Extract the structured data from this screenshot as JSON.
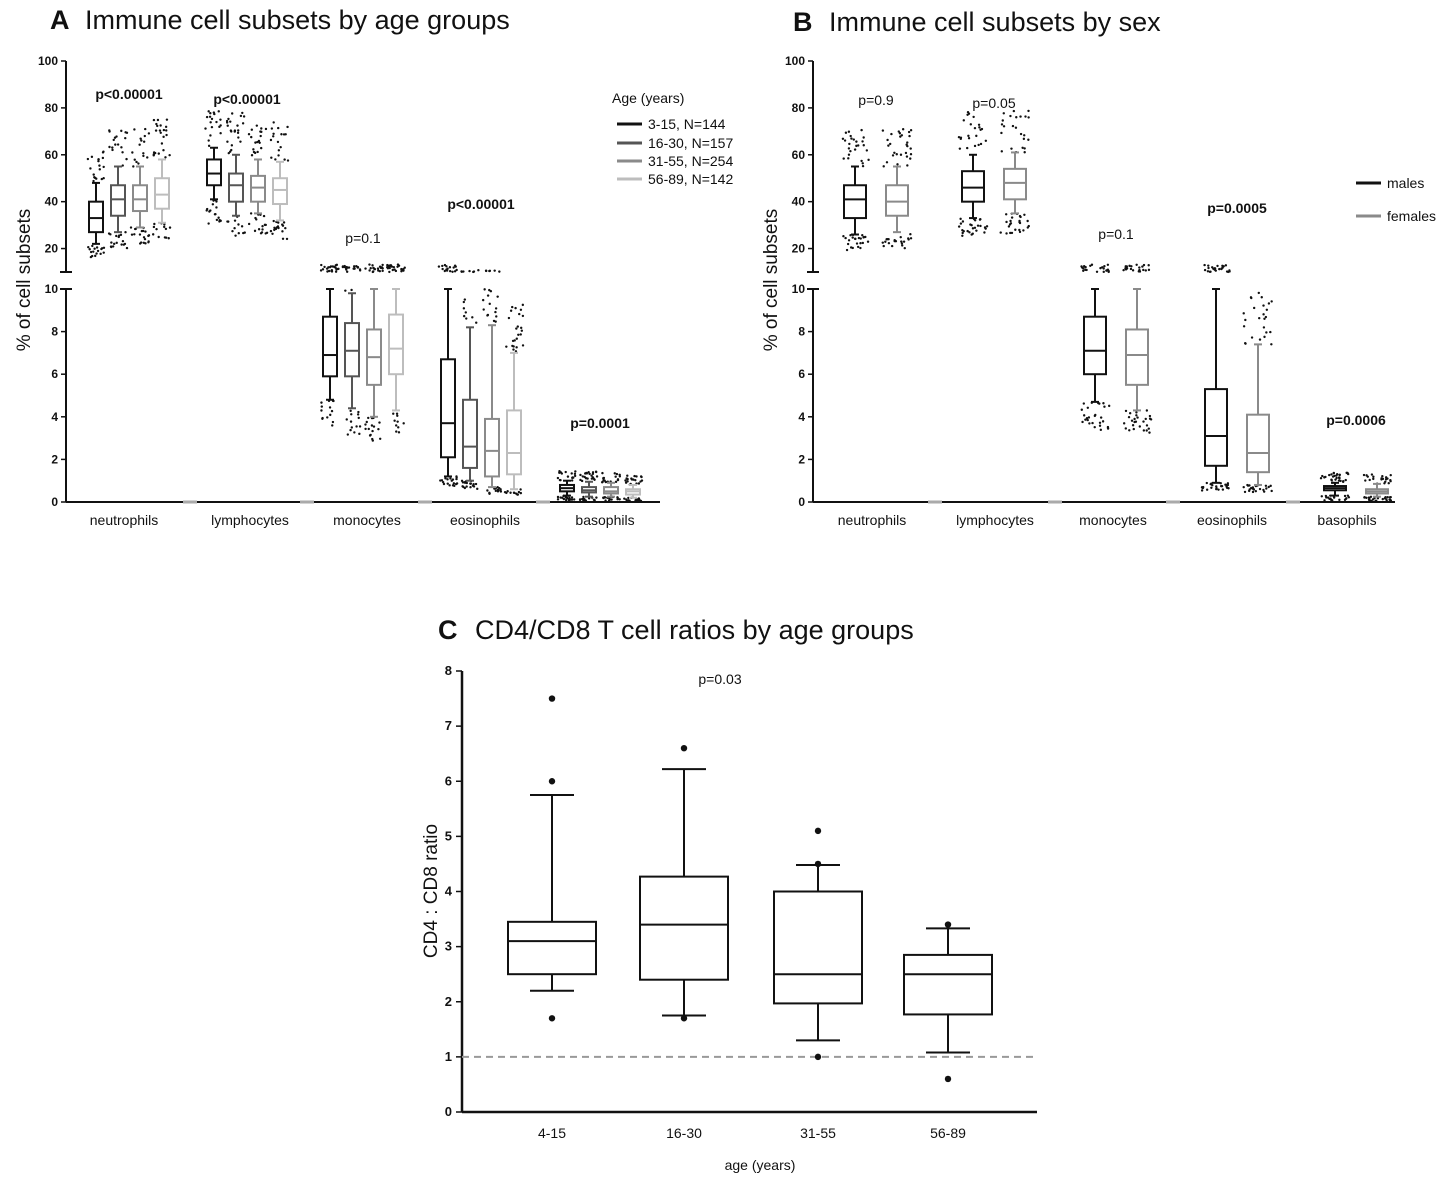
{
  "panels": {
    "A": {
      "letter": "A",
      "title": "Immune cell subsets by age groups",
      "ylabel": "% of cell subsets",
      "legend_title": "Age (years)",
      "legend": [
        "3-15, N=144",
        "16-30, N=157",
        "31-55, N=254",
        "56-89, N=142"
      ],
      "series_colors": [
        "#111111",
        "#555555",
        "#8a8a8a",
        "#bdbdbd"
      ]
    },
    "B": {
      "letter": "B",
      "title": "Immune cell subsets by sex",
      "ylabel": "% of cell subsets",
      "legend": [
        "males",
        "females"
      ],
      "series_colors": [
        "#111111",
        "#8a8a8a"
      ]
    },
    "C": {
      "letter": "C",
      "title": "CD4/CD8 T cell ratios by age groups",
      "ylabel": "CD4 : CD8 ratio",
      "xlabel": "age (years)",
      "pvalue": "p=0.03"
    }
  },
  "chart_data": [
    {
      "id": "A",
      "type": "boxplot",
      "title": "Immune cell subsets by age groups",
      "ylabel": "% of cell subsets",
      "y_axis": "broken: lower segment 0-10, upper segment 10-100",
      "lower_ticks": [
        "0",
        "2",
        "4",
        "6",
        "8",
        "10"
      ],
      "upper_ticks": [
        "20",
        "40",
        "60",
        "80",
        "100"
      ],
      "categories": [
        "neutrophils",
        "lymphocytes",
        "monocytes",
        "eosinophils",
        "basophils"
      ],
      "pvalues": [
        "p<0.00001",
        "p<0.00001",
        "p=0.1",
        "p<0.00001",
        "p=0.0001"
      ],
      "pvalue_bold": [
        true,
        true,
        false,
        true,
        true
      ],
      "series": [
        {
          "name": "3-15, N=144",
          "boxes": [
            {
              "wlo": 22,
              "q1": 27,
              "med": 33,
              "q3": 40,
              "whi": 48
            },
            {
              "wlo": 41,
              "q1": 47,
              "med": 52,
              "q3": 58,
              "whi": 63
            },
            {
              "wlo": 4.8,
              "q1": 5.9,
              "med": 6.9,
              "q3": 8.7,
              "whi": 10
            },
            {
              "wlo": 1.2,
              "q1": 2.1,
              "med": 3.7,
              "q3": 6.7,
              "whi": 10
            },
            {
              "wlo": 0.3,
              "q1": 0.5,
              "med": 0.65,
              "q3": 0.8,
              "whi": 1.0
            }
          ]
        },
        {
          "name": "16-30, N=157",
          "boxes": [
            {
              "wlo": 27,
              "q1": 34,
              "med": 41,
              "q3": 47,
              "whi": 55
            },
            {
              "wlo": 34,
              "q1": 40,
              "med": 47,
              "q3": 52,
              "whi": 60
            },
            {
              "wlo": 4.4,
              "q1": 5.9,
              "med": 7.1,
              "q3": 8.4,
              "whi": 9.8
            },
            {
              "wlo": 1.0,
              "q1": 1.6,
              "med": 2.6,
              "q3": 4.8,
              "whi": 8.2
            },
            {
              "wlo": 0.25,
              "q1": 0.45,
              "med": 0.55,
              "q3": 0.7,
              "whi": 0.95
            }
          ]
        },
        {
          "name": "31-55, N=254",
          "boxes": [
            {
              "wlo": 29,
              "q1": 36,
              "med": 41,
              "q3": 47,
              "whi": 55
            },
            {
              "wlo": 35,
              "q1": 40,
              "med": 46,
              "q3": 51,
              "whi": 58
            },
            {
              "wlo": 4.0,
              "q1": 5.5,
              "med": 6.8,
              "q3": 8.1,
              "whi": 10
            },
            {
              "wlo": 0.7,
              "q1": 1.2,
              "med": 2.4,
              "q3": 3.9,
              "whi": 8.3
            },
            {
              "wlo": 0.25,
              "q1": 0.4,
              "med": 0.5,
              "q3": 0.7,
              "whi": 0.9
            }
          ]
        },
        {
          "name": "56-89, N=142",
          "boxes": [
            {
              "wlo": 31,
              "q1": 37,
              "med": 43,
              "q3": 50,
              "whi": 58
            },
            {
              "wlo": 32,
              "q1": 39,
              "med": 45,
              "q3": 50,
              "whi": 57
            },
            {
              "wlo": 4.3,
              "q1": 6.0,
              "med": 7.2,
              "q3": 8.8,
              "whi": 10
            },
            {
              "wlo": 0.6,
              "q1": 1.3,
              "med": 2.3,
              "q3": 4.3,
              "whi": 7.0
            },
            {
              "wlo": 0.2,
              "q1": 0.35,
              "med": 0.5,
              "q3": 0.6,
              "whi": 0.8
            }
          ]
        }
      ]
    },
    {
      "id": "B",
      "type": "boxplot",
      "title": "Immune cell subsets by sex",
      "ylabel": "% of cell subsets",
      "y_axis": "broken: lower segment 0-10, upper segment 10-100",
      "lower_ticks": [
        "0",
        "2",
        "4",
        "6",
        "8",
        "10"
      ],
      "upper_ticks": [
        "20",
        "40",
        "60",
        "80",
        "100"
      ],
      "categories": [
        "neutrophils",
        "lymphocytes",
        "monocytes",
        "eosinophils",
        "basophils"
      ],
      "pvalues": [
        "p=0.9",
        "p=0.05",
        "p=0.1",
        "p=0.0005",
        "p=0.0006"
      ],
      "pvalue_bold": [
        false,
        false,
        false,
        true,
        true
      ],
      "series": [
        {
          "name": "males",
          "boxes": [
            {
              "wlo": 26,
              "q1": 33,
              "med": 41,
              "q3": 47,
              "whi": 55
            },
            {
              "wlo": 33,
              "q1": 40,
              "med": 46,
              "q3": 53,
              "whi": 60
            },
            {
              "wlo": 4.7,
              "q1": 6.0,
              "med": 7.1,
              "q3": 8.7,
              "whi": 10
            },
            {
              "wlo": 0.9,
              "q1": 1.7,
              "med": 3.1,
              "q3": 5.3,
              "whi": 10
            },
            {
              "wlo": 0.3,
              "q1": 0.55,
              "med": 0.65,
              "q3": 0.75,
              "whi": 0.9
            }
          ]
        },
        {
          "name": "females",
          "boxes": [
            {
              "wlo": 27,
              "q1": 34,
              "med": 40,
              "q3": 47,
              "whi": 55
            },
            {
              "wlo": 35,
              "q1": 41,
              "med": 48,
              "q3": 54,
              "whi": 61
            },
            {
              "wlo": 4.3,
              "q1": 5.5,
              "med": 6.9,
              "q3": 8.1,
              "whi": 10
            },
            {
              "wlo": 0.8,
              "q1": 1.4,
              "med": 2.3,
              "q3": 4.1,
              "whi": 7.4
            },
            {
              "wlo": 0.25,
              "q1": 0.4,
              "med": 0.5,
              "q3": 0.6,
              "whi": 0.85
            }
          ]
        }
      ]
    },
    {
      "id": "C",
      "type": "boxplot",
      "title": "CD4/CD8 T cell ratios by age groups",
      "xlabel": "age (years)",
      "ylabel": "CD4 : CD8 ratio",
      "ylim": [
        0,
        8
      ],
      "yticks": [
        "0",
        "1",
        "2",
        "3",
        "4",
        "5",
        "6",
        "7",
        "8"
      ],
      "reference_line": 1,
      "pvalue": "p=0.03",
      "categories": [
        "4-15",
        "16-30",
        "31-55",
        "56-89"
      ],
      "boxes": [
        {
          "wlo": 2.2,
          "q1": 2.5,
          "med": 3.1,
          "q3": 3.45,
          "whi": 5.75,
          "outliers": [
            7.5,
            6.0,
            1.7
          ]
        },
        {
          "wlo": 1.75,
          "q1": 2.4,
          "med": 3.4,
          "q3": 4.27,
          "whi": 6.22,
          "outliers": [
            6.6,
            1.7
          ]
        },
        {
          "wlo": 1.3,
          "q1": 1.97,
          "med": 2.5,
          "q3": 4.0,
          "whi": 4.48,
          "outliers": [
            5.1,
            4.5,
            1.0
          ]
        },
        {
          "wlo": 1.08,
          "q1": 1.77,
          "med": 2.5,
          "q3": 2.85,
          "whi": 3.33,
          "outliers": [
            3.4,
            0.6
          ]
        }
      ]
    }
  ]
}
